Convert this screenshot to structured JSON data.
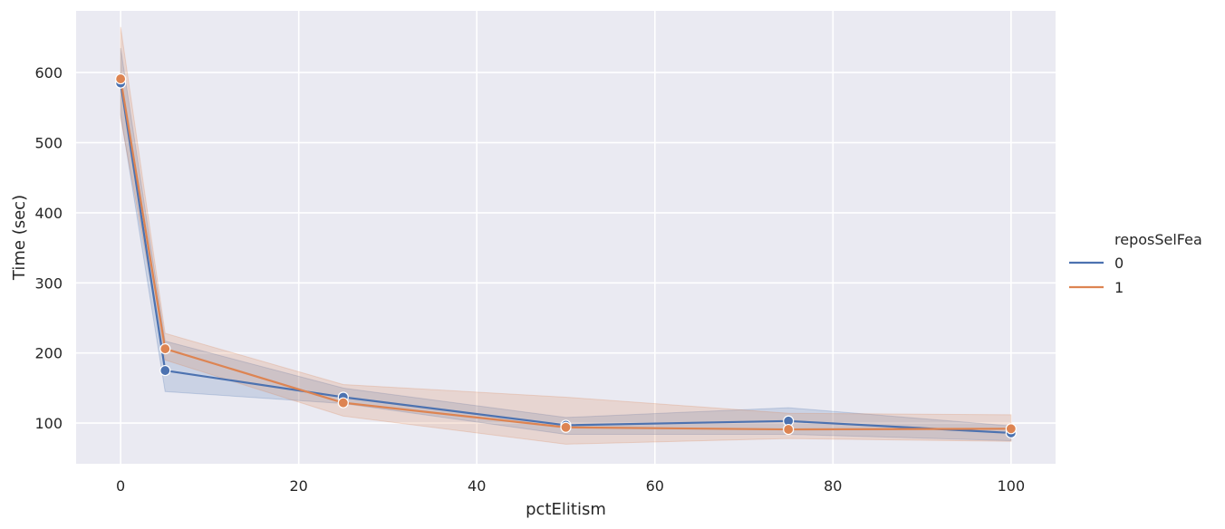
{
  "chart_data": {
    "type": "line",
    "xlabel": "pctElitism",
    "ylabel": "Time (sec)",
    "xlim": [
      -5,
      105
    ],
    "ylim": [
      42,
      688
    ],
    "xticks": [
      0,
      20,
      40,
      60,
      80,
      100
    ],
    "yticks": [
      100,
      200,
      300,
      400,
      500,
      600
    ],
    "grid": true,
    "legend": {
      "title": "reposSelFea",
      "placement": "right",
      "entries": [
        "0",
        "1"
      ]
    },
    "x": [
      0,
      5,
      25,
      50,
      75,
      100
    ],
    "series": [
      {
        "name": "0",
        "color": "#4c72b0",
        "values": [
          585,
          175,
          137,
          97,
          103,
          86
        ],
        "ci_low": [
          540,
          145,
          128,
          84,
          84,
          75
        ],
        "ci_high": [
          635,
          217,
          150,
          108,
          122,
          96
        ]
      },
      {
        "name": "1",
        "color": "#dd8452",
        "values": [
          591,
          206,
          129,
          94,
          91,
          92
        ],
        "ci_low": [
          535,
          190,
          110,
          70,
          78,
          74
        ],
        "ci_high": [
          665,
          228,
          155,
          137,
          114,
          112
        ]
      }
    ]
  }
}
